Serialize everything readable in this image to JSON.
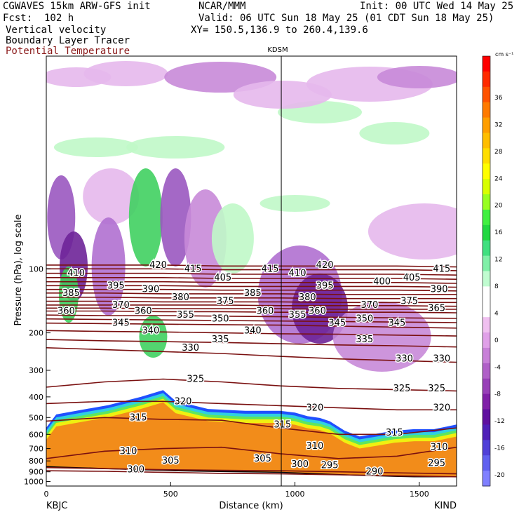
{
  "header": {
    "model_line": "CGWAVES 15km ARW-GFS init",
    "org": "NCAR/MMM",
    "init": "Init: 00 UTC Wed 14 May 25",
    "fcst": "Fcst:  102 h",
    "valid": "Valid: 06 UTC Sun 18 May 25 (01 CDT Sun 18 May 25)",
    "field1": "Vertical velocity",
    "field2": "Boundary Layer Tracer",
    "field3": "Potential Temperature",
    "xy": "XY= 150.5,136.9 to 260.4,139.6"
  },
  "colors": {
    "theta": "#7a1010",
    "field3_text": "#8b1a1a",
    "pbl_orange": "#f28c1a",
    "pbl_yellow": "#f0f010",
    "pbl_green": "#5ee65e",
    "pbl_cyan": "#30d0e0",
    "pbl_blue": "#2050ff"
  },
  "chart_data": {
    "type": "heatmap",
    "station_mark_label": "KDSM",
    "station_mark_x": 945,
    "xlabel": "Distance (km)",
    "ylabel": "Pressure (hPa), log scale",
    "x_start_label": "KBJC",
    "x_end_label": "KIND",
    "xlim": [
      0,
      1650
    ],
    "ylim": [
      1050,
      10
    ],
    "x_ticks": [
      0,
      500,
      1000,
      1500
    ],
    "y_ticks": [
      100,
      200,
      300,
      400,
      500,
      600,
      700,
      800,
      900,
      1000
    ],
    "colorbar": {
      "unit": "cm s⁻¹",
      "tick_labels": [
        "36",
        "32",
        "28",
        "24",
        "20",
        "16",
        "12",
        "8",
        "4",
        "0",
        "-4",
        "-8",
        "-12",
        "-16",
        "-20"
      ],
      "colors": [
        "#ff0000",
        "#ff2a00",
        "#ff5200",
        "#ff7a00",
        "#ff9e00",
        "#ffbe00",
        "#ffde00",
        "#ffff00",
        "#d8ff00",
        "#98ff20",
        "#40f040",
        "#20d840",
        "#40e080",
        "#80f0a8",
        "#c0fcd0",
        "#ffffff",
        "#ffffff",
        "#f0c0f0",
        "#e0a0e8",
        "#c880d8",
        "#b060c8",
        "#9840b8",
        "#8020a8",
        "#6010a0",
        "#5020b8",
        "#5040d8",
        "#6060f0",
        "#8080ff"
      ]
    },
    "isentropes": [
      {
        "theta": 300,
        "p": [
          890,
          895,
          905,
          915,
          920,
          930,
          940,
          950
        ]
      },
      {
        "theta": 305,
        "p": [
          860,
          870,
          880,
          885,
          890,
          900,
          910,
          920
        ]
      },
      {
        "theta": 310,
        "p": [
          780,
          720,
          700,
          690,
          740,
          780,
          760,
          690
        ]
      },
      {
        "theta": 315,
        "p": [
          520,
          500,
          510,
          515,
          560,
          600,
          600,
          560
        ]
      },
      {
        "theta": 320,
        "p": [
          430,
          420,
          420,
          430,
          440,
          450,
          460,
          460
        ]
      },
      {
        "theta": 325,
        "p": [
          360,
          340,
          330,
          340,
          355,
          365,
          370,
          375
        ]
      },
      {
        "theta": 330,
        "p": [
          235,
          240,
          245,
          250,
          258,
          265,
          270,
          275
        ]
      },
      {
        "theta": 335,
        "p": [
          215,
          218,
          220,
          222,
          225,
          228,
          230,
          233
        ]
      },
      {
        "theta": 340,
        "p": [
          195,
          197,
          198,
          200,
          202,
          203,
          205,
          207
        ]
      },
      {
        "theta": 345,
        "p": [
          180,
          181,
          182,
          183,
          184,
          186,
          188,
          190
        ]
      },
      {
        "theta": 350,
        "p": [
          172,
          173,
          174,
          175,
          176,
          177,
          178,
          179
        ]
      },
      {
        "theta": 355,
        "p": [
          165,
          166,
          166,
          167,
          168,
          169,
          170,
          171
        ]
      },
      {
        "theta": 360,
        "p": [
          158,
          158,
          159,
          159,
          160,
          160,
          160,
          161
        ]
      },
      {
        "theta": 365,
        "p": [
          153,
          153,
          154,
          154,
          154,
          155,
          155,
          155
        ]
      },
      {
        "theta": 370,
        "p": [
          148,
          148,
          148,
          148,
          149,
          149,
          149,
          150
        ]
      },
      {
        "theta": 375,
        "p": [
          142,
          142,
          143,
          143,
          143,
          144,
          144,
          144
        ]
      },
      {
        "theta": 380,
        "p": [
          136,
          136,
          137,
          137,
          137,
          138,
          138,
          138
        ]
      },
      {
        "theta": 385,
        "p": [
          130,
          130,
          131,
          131,
          131,
          132,
          132,
          132
        ]
      },
      {
        "theta": 390,
        "p": [
          125,
          125,
          125,
          126,
          126,
          126,
          126,
          127
        ]
      },
      {
        "theta": 395,
        "p": [
          120,
          120,
          120,
          121,
          121,
          121,
          121,
          122
        ]
      },
      {
        "theta": 400,
        "p": [
          115,
          115,
          115,
          116,
          116,
          116,
          116,
          117
        ]
      },
      {
        "theta": 405,
        "p": [
          110,
          110,
          110,
          111,
          111,
          111,
          111,
          112
        ]
      },
      {
        "theta": 410,
        "p": [
          105,
          105,
          105,
          106,
          106,
          106,
          106,
          107
        ]
      },
      {
        "theta": 415,
        "p": [
          100,
          100,
          100,
          101,
          101,
          101,
          101,
          102
        ]
      },
      {
        "theta": 420,
        "p": [
          96,
          96,
          96,
          97,
          97,
          97,
          97,
          98
        ]
      }
    ],
    "isentrope_x": [
      0,
      235,
      470,
      705,
      940,
      1175,
      1410,
      1650
    ],
    "theta_labels": [
      {
        "text": "410",
        "x": 120,
        "p": 105
      },
      {
        "text": "420",
        "x": 450,
        "p": 96
      },
      {
        "text": "415",
        "x": 590,
        "p": 100
      },
      {
        "text": "415",
        "x": 900,
        "p": 100
      },
      {
        "text": "420",
        "x": 1120,
        "p": 96
      },
      {
        "text": "415",
        "x": 1590,
        "p": 100
      },
      {
        "text": "395",
        "x": 280,
        "p": 120
      },
      {
        "text": "390",
        "x": 420,
        "p": 125
      },
      {
        "text": "405",
        "x": 710,
        "p": 110
      },
      {
        "text": "410",
        "x": 1010,
        "p": 105
      },
      {
        "text": "395",
        "x": 1120,
        "p": 120
      },
      {
        "text": "400",
        "x": 1350,
        "p": 115
      },
      {
        "text": "405",
        "x": 1470,
        "p": 110
      },
      {
        "text": "385",
        "x": 100,
        "p": 130
      },
      {
        "text": "380",
        "x": 540,
        "p": 136
      },
      {
        "text": "385",
        "x": 830,
        "p": 130
      },
      {
        "text": "380",
        "x": 1050,
        "p": 136
      },
      {
        "text": "390",
        "x": 1580,
        "p": 125
      },
      {
        "text": "375",
        "x": 720,
        "p": 142
      },
      {
        "text": "375",
        "x": 1460,
        "p": 142
      },
      {
        "text": "370",
        "x": 300,
        "p": 148
      },
      {
        "text": "370",
        "x": 1300,
        "p": 148
      },
      {
        "text": "360",
        "x": 80,
        "p": 158
      },
      {
        "text": "360",
        "x": 390,
        "p": 158
      },
      {
        "text": "360",
        "x": 880,
        "p": 158
      },
      {
        "text": "360",
        "x": 1090,
        "p": 158
      },
      {
        "text": "365",
        "x": 1570,
        "p": 153
      },
      {
        "text": "355",
        "x": 560,
        "p": 165
      },
      {
        "text": "355",
        "x": 1010,
        "p": 165
      },
      {
        "text": "350",
        "x": 700,
        "p": 172
      },
      {
        "text": "350",
        "x": 1280,
        "p": 172
      },
      {
        "text": "345",
        "x": 300,
        "p": 180
      },
      {
        "text": "345",
        "x": 1170,
        "p": 180
      },
      {
        "text": "345",
        "x": 1410,
        "p": 180
      },
      {
        "text": "340",
        "x": 420,
        "p": 195
      },
      {
        "text": "340",
        "x": 830,
        "p": 195
      },
      {
        "text": "335",
        "x": 700,
        "p": 215
      },
      {
        "text": "335",
        "x": 1280,
        "p": 215
      },
      {
        "text": "330",
        "x": 580,
        "p": 235
      },
      {
        "text": "330",
        "x": 1440,
        "p": 265
      },
      {
        "text": "330",
        "x": 1590,
        "p": 265
      },
      {
        "text": "325",
        "x": 600,
        "p": 330
      },
      {
        "text": "325",
        "x": 1430,
        "p": 365
      },
      {
        "text": "325",
        "x": 1570,
        "p": 365
      },
      {
        "text": "320",
        "x": 550,
        "p": 420
      },
      {
        "text": "320",
        "x": 1080,
        "p": 450
      },
      {
        "text": "320",
        "x": 1590,
        "p": 450
      },
      {
        "text": "315",
        "x": 370,
        "p": 500
      },
      {
        "text": "315",
        "x": 950,
        "p": 540
      },
      {
        "text": "315",
        "x": 1400,
        "p": 590
      },
      {
        "text": "310",
        "x": 330,
        "p": 720
      },
      {
        "text": "310",
        "x": 1080,
        "p": 680
      },
      {
        "text": "310",
        "x": 1580,
        "p": 690
      },
      {
        "text": "305",
        "x": 500,
        "p": 800
      },
      {
        "text": "305",
        "x": 870,
        "p": 780
      },
      {
        "text": "300",
        "x": 360,
        "p": 880
      },
      {
        "text": "300",
        "x": 1020,
        "p": 830
      },
      {
        "text": "295",
        "x": 1140,
        "p": 840
      },
      {
        "text": "295",
        "x": 1570,
        "p": 820
      },
      {
        "text": "290",
        "x": 1320,
        "p": 900
      }
    ],
    "boundary_layer_top": {
      "x": [
        0,
        40,
        120,
        250,
        380,
        470,
        520,
        650,
        800,
        940,
        1000,
        1050,
        1100,
        1140,
        1200,
        1260,
        1330,
        1400,
        1480,
        1560,
        1650
      ],
      "p": [
        600,
        520,
        500,
        470,
        430,
        400,
        450,
        490,
        500,
        500,
        510,
        530,
        540,
        560,
        620,
        660,
        640,
        620,
        610,
        610,
        580
      ]
    },
    "terrain_p": [
      850,
      855,
      860,
      870,
      880,
      885,
      890,
      895,
      900,
      905,
      910,
      915,
      920,
      925,
      930,
      935,
      940,
      945,
      950,
      950,
      950
    ]
  }
}
